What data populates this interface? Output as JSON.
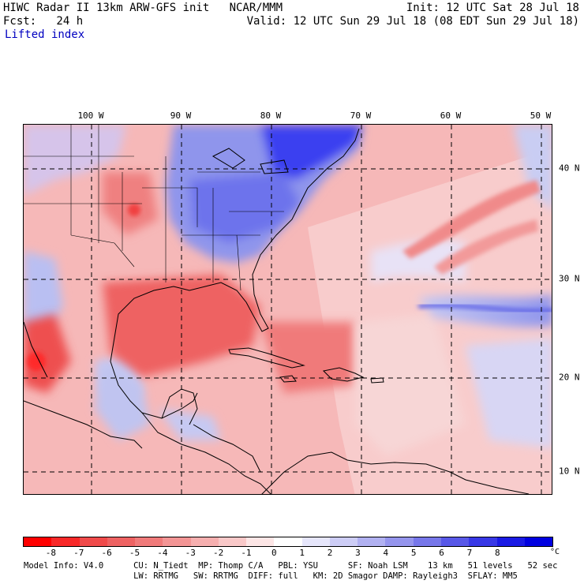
{
  "header": {
    "line1_left": "HIWC Radar II 13km ARW-GFS init   NCAR/MMM",
    "line1_right": "Init: 12 UTC Sat 28 Jul 18",
    "line2_left": "Fcst:   24 h",
    "line2_right": "Valid: 12 UTC Sun 29 Jul 18 (08 EDT Sun 29 Jul 18)",
    "field_name": "Lifted index"
  },
  "map": {
    "lon_labels": [
      "100 W",
      "90 W",
      "80 W",
      "70 W",
      "60 W",
      "50 W"
    ],
    "lat_labels": [
      "40 N",
      "30 N",
      "20 N",
      "10 N"
    ],
    "colors": {
      "land_warm": "#f4a0a0",
      "ocean_warm": "#f8c8c8",
      "cold_strong": "#3a3af0",
      "cold_light": "#b8bff2",
      "neutral": "#ffffff"
    }
  },
  "colorbar": {
    "ticks": [
      "-8",
      "-7",
      "-6",
      "-5",
      "-4",
      "-3",
      "-2",
      "-1",
      "0",
      "1",
      "2",
      "3",
      "4",
      "5",
      "6",
      "7",
      "8"
    ],
    "unit": "°C",
    "colors": [
      "#ff0000",
      "#f82828",
      "#f04a4a",
      "#ee6262",
      "#f07a7a",
      "#f39595",
      "#f6afaf",
      "#f9c8c8",
      "#fde6e6",
      "#ffffff",
      "#e6e6fb",
      "#cdcdf6",
      "#b1b1f1",
      "#9595ed",
      "#7777ea",
      "#5858e8",
      "#3838e6",
      "#1a1ae4",
      "#0000e0"
    ]
  },
  "footer": {
    "line1": "Model Info: V4.0      CU: N_Tiedt  MP: Thomp C/A   PBL: YSU      SF: Noah LSM    13 km   51 levels   52 sec",
    "line2": "                      LW: RRTMG   SW: RRTMG  DIFF: full   KM: 2D Smagor DAMP: Rayleigh3  SFLAY: MM5"
  }
}
